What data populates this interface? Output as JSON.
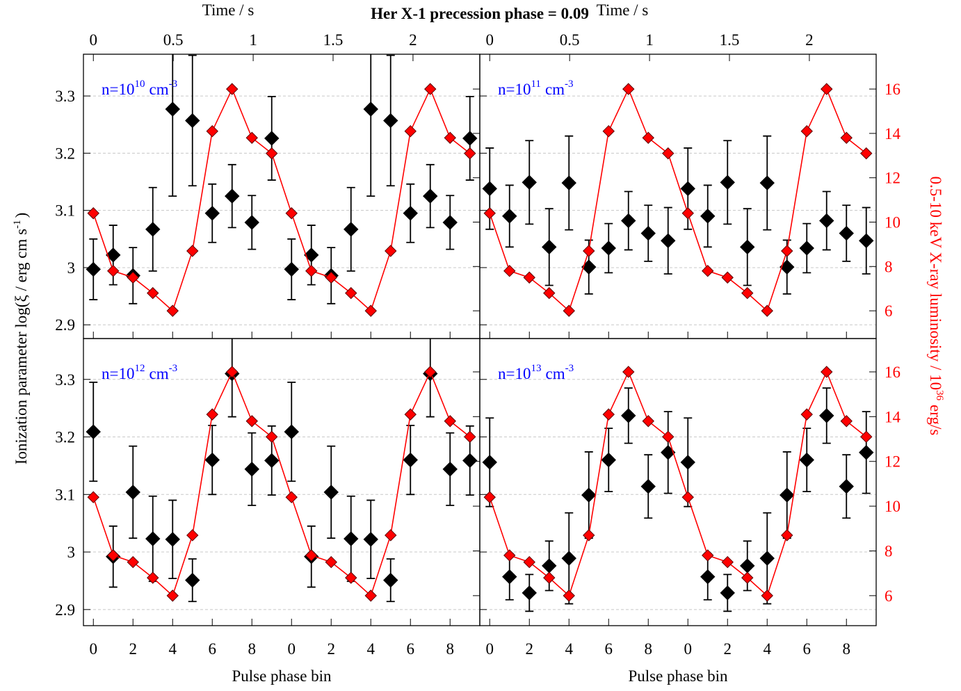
{
  "title": "Her X-1 precession phase = 0.09",
  "ylabel": "Ionization parameter log(ξ / erg cm s",
  "ylabel_sup": "-1",
  "ylabel_end": ")",
  "y2label": "0.5-10 keV X-ray luminosity / 10",
  "y2label_sup": "36",
  "y2label_end": "erg/s",
  "chart_data": [
    {
      "type": "scatter",
      "label_base": "n=10",
      "label_exp": "10",
      "label_unit": "cm",
      "label_unit_exp": "-3",
      "x": [
        0,
        1,
        2,
        3,
        4,
        5,
        6,
        7,
        8,
        9,
        10,
        11,
        12,
        13,
        14,
        15,
        16,
        17,
        18,
        19
      ],
      "xlim": [
        -0.5,
        19.5
      ],
      "xticks": [
        0,
        2,
        4,
        6,
        8,
        {
          "value": 10,
          "label": "0"
        },
        {
          "value": 12,
          "label": "2"
        },
        {
          "value": 14,
          "label": "4"
        },
        {
          "value": 16,
          "label": "6"
        },
        {
          "value": 18,
          "label": "8"
        }
      ],
      "x2label": "Time / s",
      "x2lim": [
        -0.062,
        2.418
      ],
      "x2ticks": [
        0,
        0.5,
        1,
        1.5,
        2
      ],
      "ylim": [
        2.876,
        3.373
      ],
      "yticks": [
        2.9,
        3,
        3.1,
        3.2,
        3.3
      ],
      "y2lim": [
        4.75,
        17.57
      ],
      "y2ticks": [
        6,
        8,
        10,
        12,
        14,
        16
      ],
      "show_ytick_labels": true,
      "show_y2tick_labels": false,
      "show_xtick_labels": false,
      "grid": true,
      "series": [
        {
          "color": "#000000",
          "values": [
            2.997,
            3.022,
            2.986,
            3.067,
            3.277,
            3.257,
            3.095,
            3.125,
            3.079,
            3.226,
            2.997,
            3.022,
            2.986,
            3.067,
            3.277,
            3.257,
            3.095,
            3.125,
            3.079,
            3.226
          ],
          "errors": [
            0.053,
            0.052,
            0.049,
            0.073,
            0.152,
            0.114,
            0.051,
            0.055,
            0.047,
            0.073,
            0.053,
            0.052,
            0.049,
            0.073,
            0.152,
            0.114,
            0.051,
            0.055,
            0.047,
            0.073
          ]
        },
        {
          "color": "#ff0000",
          "axis": "y2",
          "values": [
            10.4,
            7.8,
            7.5,
            6.8,
            6.0,
            8.7,
            14.1,
            16.0,
            13.8,
            13.1,
            10.4,
            7.8,
            7.5,
            6.8,
            6.0,
            8.7,
            14.1,
            16.0,
            13.8,
            13.1
          ]
        }
      ]
    },
    {
      "type": "scatter",
      "label_base": "n=10",
      "label_exp": "11",
      "label_unit": "cm",
      "label_unit_exp": "-3",
      "x": [
        0,
        1,
        2,
        3,
        4,
        5,
        6,
        7,
        8,
        9,
        10,
        11,
        12,
        13,
        14,
        15,
        16,
        17,
        18,
        19
      ],
      "xlim": [
        -0.5,
        19.5
      ],
      "xticks": [
        0,
        2,
        4,
        6,
        8,
        {
          "value": 10,
          "label": "0"
        },
        {
          "value": 12,
          "label": "2"
        },
        {
          "value": 14,
          "label": "4"
        },
        {
          "value": 16,
          "label": "6"
        },
        {
          "value": 18,
          "label": "8"
        }
      ],
      "x2label": "Time / s",
      "x2lim": [
        -0.062,
        2.418
      ],
      "x2ticks": [
        0,
        0.5,
        1,
        1.5,
        2
      ],
      "ylim": [
        2.876,
        3.373
      ],
      "yticks": [
        2.9,
        3,
        3.1,
        3.2,
        3.3
      ],
      "y2lim": [
        4.75,
        17.57
      ],
      "y2ticks": [
        6,
        8,
        10,
        12,
        14,
        16
      ],
      "show_ytick_labels": false,
      "show_y2tick_labels": true,
      "show_xtick_labels": false,
      "grid": true,
      "series": [
        {
          "color": "#000000",
          "values": [
            3.138,
            3.09,
            3.149,
            3.036,
            3.148,
            3.001,
            3.034,
            3.082,
            3.06,
            3.047,
            3.138,
            3.09,
            3.149,
            3.036,
            3.148,
            3.001,
            3.034,
            3.082,
            3.06,
            3.047
          ],
          "errors": [
            0.071,
            0.054,
            0.073,
            0.067,
            0.082,
            0.047,
            0.043,
            0.051,
            0.049,
            0.058,
            0.071,
            0.054,
            0.073,
            0.067,
            0.082,
            0.047,
            0.043,
            0.051,
            0.049,
            0.058
          ]
        },
        {
          "color": "#ff0000",
          "axis": "y2",
          "values": [
            10.4,
            7.8,
            7.5,
            6.8,
            6.0,
            8.7,
            14.1,
            16.0,
            13.8,
            13.1,
            10.4,
            7.8,
            7.5,
            6.8,
            6.0,
            8.7,
            14.1,
            16.0,
            13.8,
            13.1
          ]
        }
      ]
    },
    {
      "type": "scatter",
      "label_base": "n=10",
      "label_exp": "12",
      "label_unit": "cm",
      "label_unit_exp": "-3",
      "x": [
        0,
        1,
        2,
        3,
        4,
        5,
        6,
        7,
        8,
        9,
        10,
        11,
        12,
        13,
        14,
        15,
        16,
        17,
        18,
        19
      ],
      "xlabel": "Pulse phase bin",
      "xlim": [
        -0.5,
        19.5
      ],
      "xticks": [
        0,
        2,
        4,
        6,
        8,
        {
          "value": 10,
          "label": "0"
        },
        {
          "value": 12,
          "label": "2"
        },
        {
          "value": 14,
          "label": "4"
        },
        {
          "value": 16,
          "label": "6"
        },
        {
          "value": 18,
          "label": "8"
        }
      ],
      "ylim": [
        2.872,
        3.371
      ],
      "yticks": [
        2.9,
        3,
        3.1,
        3.2,
        3.3
      ],
      "y2lim": [
        4.66,
        17.49
      ],
      "y2ticks": [
        6,
        8,
        10,
        12,
        14,
        16
      ],
      "show_ytick_labels": true,
      "show_y2tick_labels": false,
      "show_xtick_labels": true,
      "grid": true,
      "series": [
        {
          "color": "#000000",
          "values": [
            3.209,
            2.992,
            3.104,
            3.023,
            3.022,
            2.951,
            3.16,
            3.31,
            3.144,
            3.159,
            3.209,
            2.992,
            3.104,
            3.023,
            3.022,
            2.951,
            3.16,
            3.31,
            3.144,
            3.159
          ],
          "errors": [
            0.086,
            0.053,
            0.08,
            0.074,
            0.068,
            0.037,
            0.06,
            0.075,
            0.063,
            0.06,
            0.086,
            0.053,
            0.08,
            0.074,
            0.068,
            0.037,
            0.06,
            0.075,
            0.063,
            0.06
          ]
        },
        {
          "color": "#ff0000",
          "axis": "y2",
          "values": [
            10.4,
            7.8,
            7.5,
            6.8,
            6.0,
            8.7,
            14.1,
            16.0,
            13.8,
            13.1,
            10.4,
            7.8,
            7.5,
            6.8,
            6.0,
            8.7,
            14.1,
            16.0,
            13.8,
            13.1
          ]
        }
      ]
    },
    {
      "type": "scatter",
      "label_base": "n=10",
      "label_exp": "13",
      "label_unit": "cm",
      "label_unit_exp": "-3",
      "x": [
        0,
        1,
        2,
        3,
        4,
        5,
        6,
        7,
        8,
        9,
        10,
        11,
        12,
        13,
        14,
        15,
        16,
        17,
        18,
        19
      ],
      "xlabel": "Pulse phase bin",
      "xlim": [
        -0.5,
        19.5
      ],
      "xticks": [
        0,
        2,
        4,
        6,
        8,
        {
          "value": 10,
          "label": "0"
        },
        {
          "value": 12,
          "label": "2"
        },
        {
          "value": 14,
          "label": "4"
        },
        {
          "value": 16,
          "label": "6"
        },
        {
          "value": 18,
          "label": "8"
        }
      ],
      "ylim": [
        2.872,
        3.371
      ],
      "yticks": [
        2.9,
        3,
        3.1,
        3.2,
        3.3
      ],
      "y2lim": [
        4.66,
        17.49
      ],
      "y2ticks": [
        6,
        8,
        10,
        12,
        14,
        16
      ],
      "show_ytick_labels": false,
      "show_y2tick_labels": true,
      "show_xtick_labels": true,
      "grid": true,
      "series": [
        {
          "color": "#000000",
          "values": [
            3.156,
            2.957,
            2.929,
            2.976,
            2.989,
            3.099,
            3.16,
            3.237,
            3.114,
            3.173,
            3.156,
            2.957,
            2.929,
            2.976,
            2.989,
            3.099,
            3.16,
            3.237,
            3.114,
            3.173
          ],
          "errors": [
            0.077,
            0.04,
            0.032,
            0.043,
            0.079,
            0.075,
            0.055,
            0.048,
            0.055,
            0.071,
            0.077,
            0.04,
            0.032,
            0.043,
            0.079,
            0.075,
            0.055,
            0.048,
            0.055,
            0.071
          ]
        },
        {
          "color": "#ff0000",
          "axis": "y2",
          "values": [
            10.4,
            7.8,
            7.5,
            6.8,
            6.0,
            8.7,
            14.1,
            16.0,
            13.8,
            13.1,
            10.4,
            7.8,
            7.5,
            6.8,
            6.0,
            8.7,
            14.1,
            16.0,
            13.8,
            13.1
          ]
        }
      ]
    }
  ]
}
